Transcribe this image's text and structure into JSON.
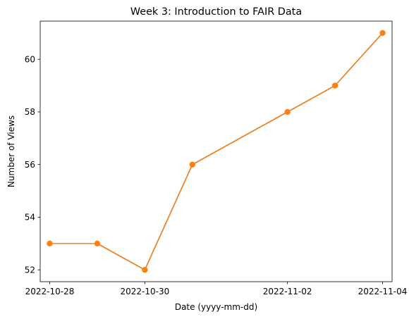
{
  "chart_data": {
    "type": "line",
    "title": "Week 3: Introduction to FAIR Data",
    "xlabel": "Date (yyyy-mm-dd)",
    "ylabel": "Number of Views",
    "x_ticks": [
      "2022-10-28",
      "2022-10-30",
      "2022-11-02",
      "2022-11-04"
    ],
    "y_ticks": [
      52,
      54,
      56,
      58,
      60
    ],
    "xlim": [
      "2022-10-27T19:12",
      "2022-11-04T04:48"
    ],
    "ylim": [
      51.55,
      61.45
    ],
    "grid": false,
    "line_color": "#ff7f0e",
    "second_line_color": "#1f77b4",
    "series": [
      {
        "x": [
          "2022-10-28",
          "2022-10-29",
          "2022-10-30",
          "2022-10-31",
          "2022-11-02",
          "2022-11-03",
          "2022-11-04"
        ],
        "values": [
          53,
          53,
          52,
          56,
          58,
          59,
          61
        ]
      }
    ]
  }
}
